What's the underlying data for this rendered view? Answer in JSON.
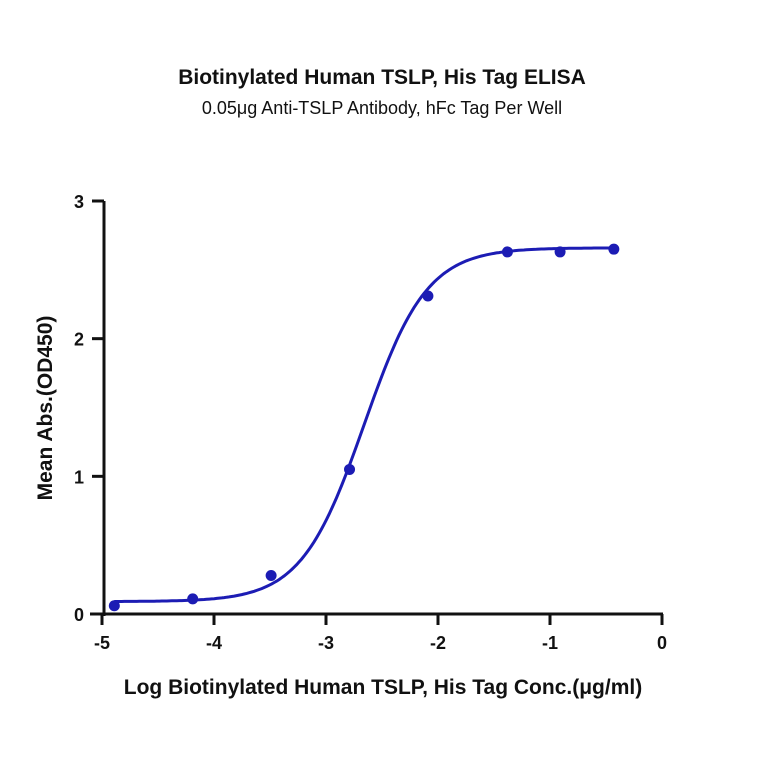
{
  "chart_data": {
    "type": "line",
    "title": "Biotinylated Human TSLP, His Tag ELISA",
    "subtitle": "0.05μg Anti-TSLP Antibody, hFc Tag Per Well",
    "xlabel": "Log Biotinylated Human TSLP, His Tag Conc.(μg/ml)",
    "ylabel": "Mean Abs.(OD450)",
    "xlim": [
      -5,
      0
    ],
    "ylim": [
      0,
      3
    ],
    "x_ticks": [
      -5,
      -4,
      -3,
      -2,
      -1,
      0
    ],
    "y_ticks": [
      0,
      1,
      2,
      3
    ],
    "grid": false,
    "legend": null,
    "series": [
      {
        "name": "Biotinylated Human TSLP, His Tag",
        "color": "#1c1cb4",
        "marker": "circle",
        "fit": "4PL sigmoidal",
        "x": [
          -4.89,
          -4.19,
          -3.49,
          -2.79,
          -2.09,
          -1.38,
          -0.91,
          -0.43
        ],
        "y": [
          0.06,
          0.11,
          0.28,
          1.05,
          2.31,
          2.63,
          2.63,
          2.65
        ]
      }
    ],
    "fit_params": {
      "bottom": 0.09,
      "top": 2.66,
      "logEC50": -2.66,
      "hill": 1.55
    }
  }
}
